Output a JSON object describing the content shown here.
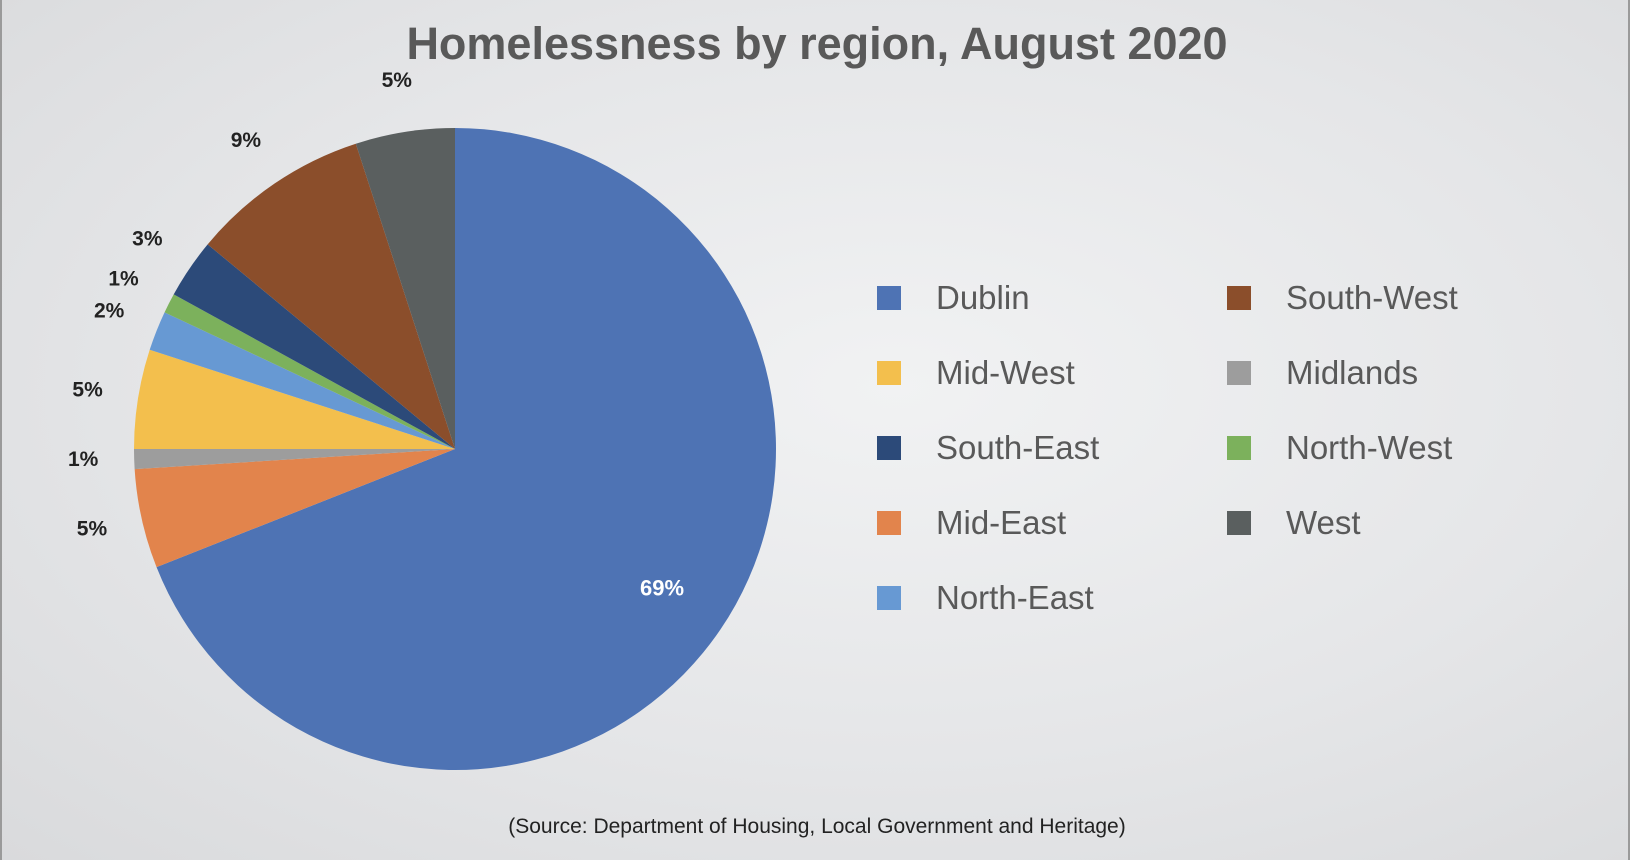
{
  "chart_data": {
    "type": "pie",
    "title": "Homelessness by region, August 2020",
    "source": "(Source: Department of Housing, Local Government and Heritage)",
    "start_angle_deg": 0,
    "direction": "clockwise",
    "legend_position": "right",
    "slices": [
      {
        "name": "Dublin",
        "value": 69,
        "label": "69%",
        "color": "#4e73b4"
      },
      {
        "name": "Mid-East",
        "value": 5,
        "label": "5%",
        "color": "#e2844c"
      },
      {
        "name": "Midlands",
        "value": 1,
        "label": "1%",
        "color": "#9d9d9d"
      },
      {
        "name": "Mid-West",
        "value": 5,
        "label": "5%",
        "color": "#f3bf4d"
      },
      {
        "name": "North-East",
        "value": 2,
        "label": "2%",
        "color": "#6799d3"
      },
      {
        "name": "North-West",
        "value": 1,
        "label": "1%",
        "color": "#7cb15c"
      },
      {
        "name": "South-East",
        "value": 3,
        "label": "3%",
        "color": "#2c4a79"
      },
      {
        "name": "South-West",
        "value": 9,
        "label": "9%",
        "color": "#8b4e2b"
      },
      {
        "name": "West",
        "value": 5,
        "label": "5%",
        "color": "#5a5f5f"
      }
    ],
    "legend": [
      {
        "name": "Dublin",
        "color": "#4e73b4"
      },
      {
        "name": "Mid-West",
        "color": "#f3bf4d"
      },
      {
        "name": "South-East",
        "color": "#2c4a79"
      },
      {
        "name": "Mid-East",
        "color": "#e2844c"
      },
      {
        "name": "North-East",
        "color": "#6799d3"
      },
      {
        "name": "South-West",
        "color": "#8b4e2b"
      },
      {
        "name": "Midlands",
        "color": "#9d9d9d"
      },
      {
        "name": "North-West",
        "color": "#7cb15c"
      },
      {
        "name": "West",
        "color": "#5a5f5f"
      }
    ]
  }
}
